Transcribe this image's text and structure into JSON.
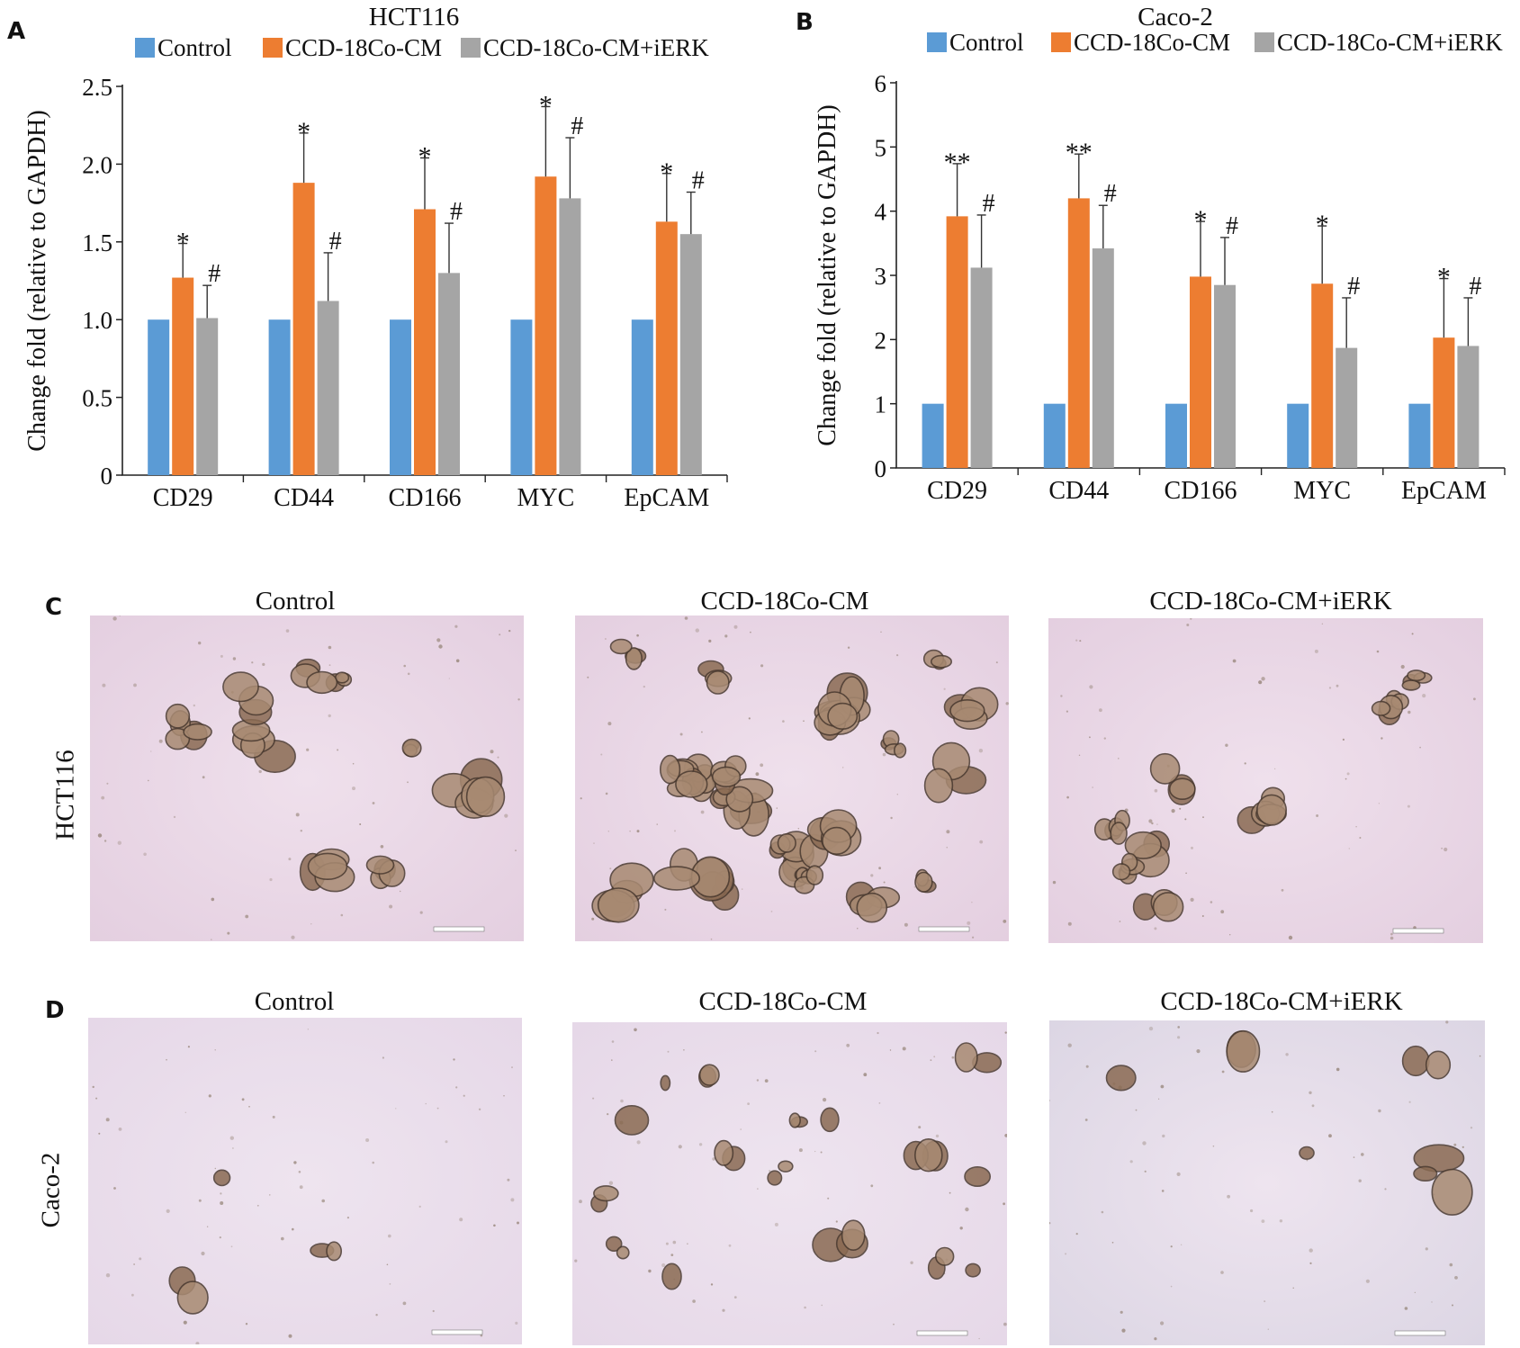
{
  "panels": {
    "A": "A",
    "B": "B",
    "C": "C",
    "D": "D"
  },
  "chart_data": [
    {
      "type": "bar",
      "title": "HCT116",
      "ylabel": "Change fold (relative to GAPDH)",
      "xlabel": "",
      "ylim": [
        0,
        2.5
      ],
      "yticks": [
        "0",
        "0.5",
        "1.0",
        "1.5",
        "2.0",
        "2.5"
      ],
      "categories": [
        "CD29",
        "CD44",
        "CD166",
        "MYC",
        "EpCAM"
      ],
      "legend_position": "top",
      "series": [
        {
          "name": "Control",
          "color": "#5b9bd5",
          "values": [
            1.0,
            1.0,
            1.0,
            1.0,
            1.0
          ],
          "errors": [
            0,
            0,
            0,
            0,
            0
          ],
          "marks": [
            "",
            "",
            "",
            "",
            ""
          ]
        },
        {
          "name": "CCD-18Co-CM",
          "color": "#ed7d31",
          "values": [
            1.27,
            1.88,
            1.71,
            1.92,
            1.63
          ],
          "errors": [
            0.22,
            0.32,
            0.33,
            0.45,
            0.31
          ],
          "marks": [
            "*",
            "*",
            "*",
            "*",
            "*"
          ]
        },
        {
          "name": "CCD-18Co-CM+iERK",
          "color": "#a5a5a5",
          "values": [
            1.01,
            1.12,
            1.3,
            1.78,
            1.55
          ],
          "errors": [
            0.21,
            0.31,
            0.32,
            0.39,
            0.27
          ],
          "marks": [
            "#",
            "#",
            "#",
            "#",
            "#"
          ]
        }
      ]
    },
    {
      "type": "bar",
      "title": "Caco-2",
      "ylabel": "Change fold (relative to GAPDH)",
      "xlabel": "",
      "ylim": [
        0,
        6
      ],
      "yticks": [
        "0",
        "1",
        "2",
        "3",
        "4",
        "5",
        "6"
      ],
      "categories": [
        "CD29",
        "CD44",
        "CD166",
        "MYC",
        "EpCAM"
      ],
      "legend_position": "top",
      "series": [
        {
          "name": "Control",
          "color": "#5b9bd5",
          "values": [
            1,
            1,
            1,
            1,
            1
          ],
          "errors": [
            0,
            0,
            0,
            0,
            0
          ],
          "marks": [
            "",
            "",
            "",
            "",
            ""
          ]
        },
        {
          "name": "CCD-18Co-CM",
          "color": "#ed7d31",
          "values": [
            3.92,
            4.2,
            2.98,
            2.87,
            2.03
          ],
          "errors": [
            0.82,
            0.69,
            0.86,
            0.9,
            0.92
          ],
          "marks": [
            "**",
            "**",
            "*",
            "*",
            "*"
          ]
        },
        {
          "name": "CCD-18Co-CM+iERK",
          "color": "#a5a5a5",
          "values": [
            3.12,
            3.42,
            2.85,
            1.87,
            1.9
          ],
          "errors": [
            0.82,
            0.67,
            0.74,
            0.78,
            0.75
          ],
          "marks": [
            "#",
            "#",
            "#",
            "#",
            "#"
          ]
        }
      ]
    }
  ],
  "micrographs": {
    "row_c_label": "HCT116",
    "row_d_label": "Caco-2",
    "column_titles": [
      "Control",
      "CCD-18Co-CM",
      "CCD-18Co-CM+iERK"
    ]
  }
}
